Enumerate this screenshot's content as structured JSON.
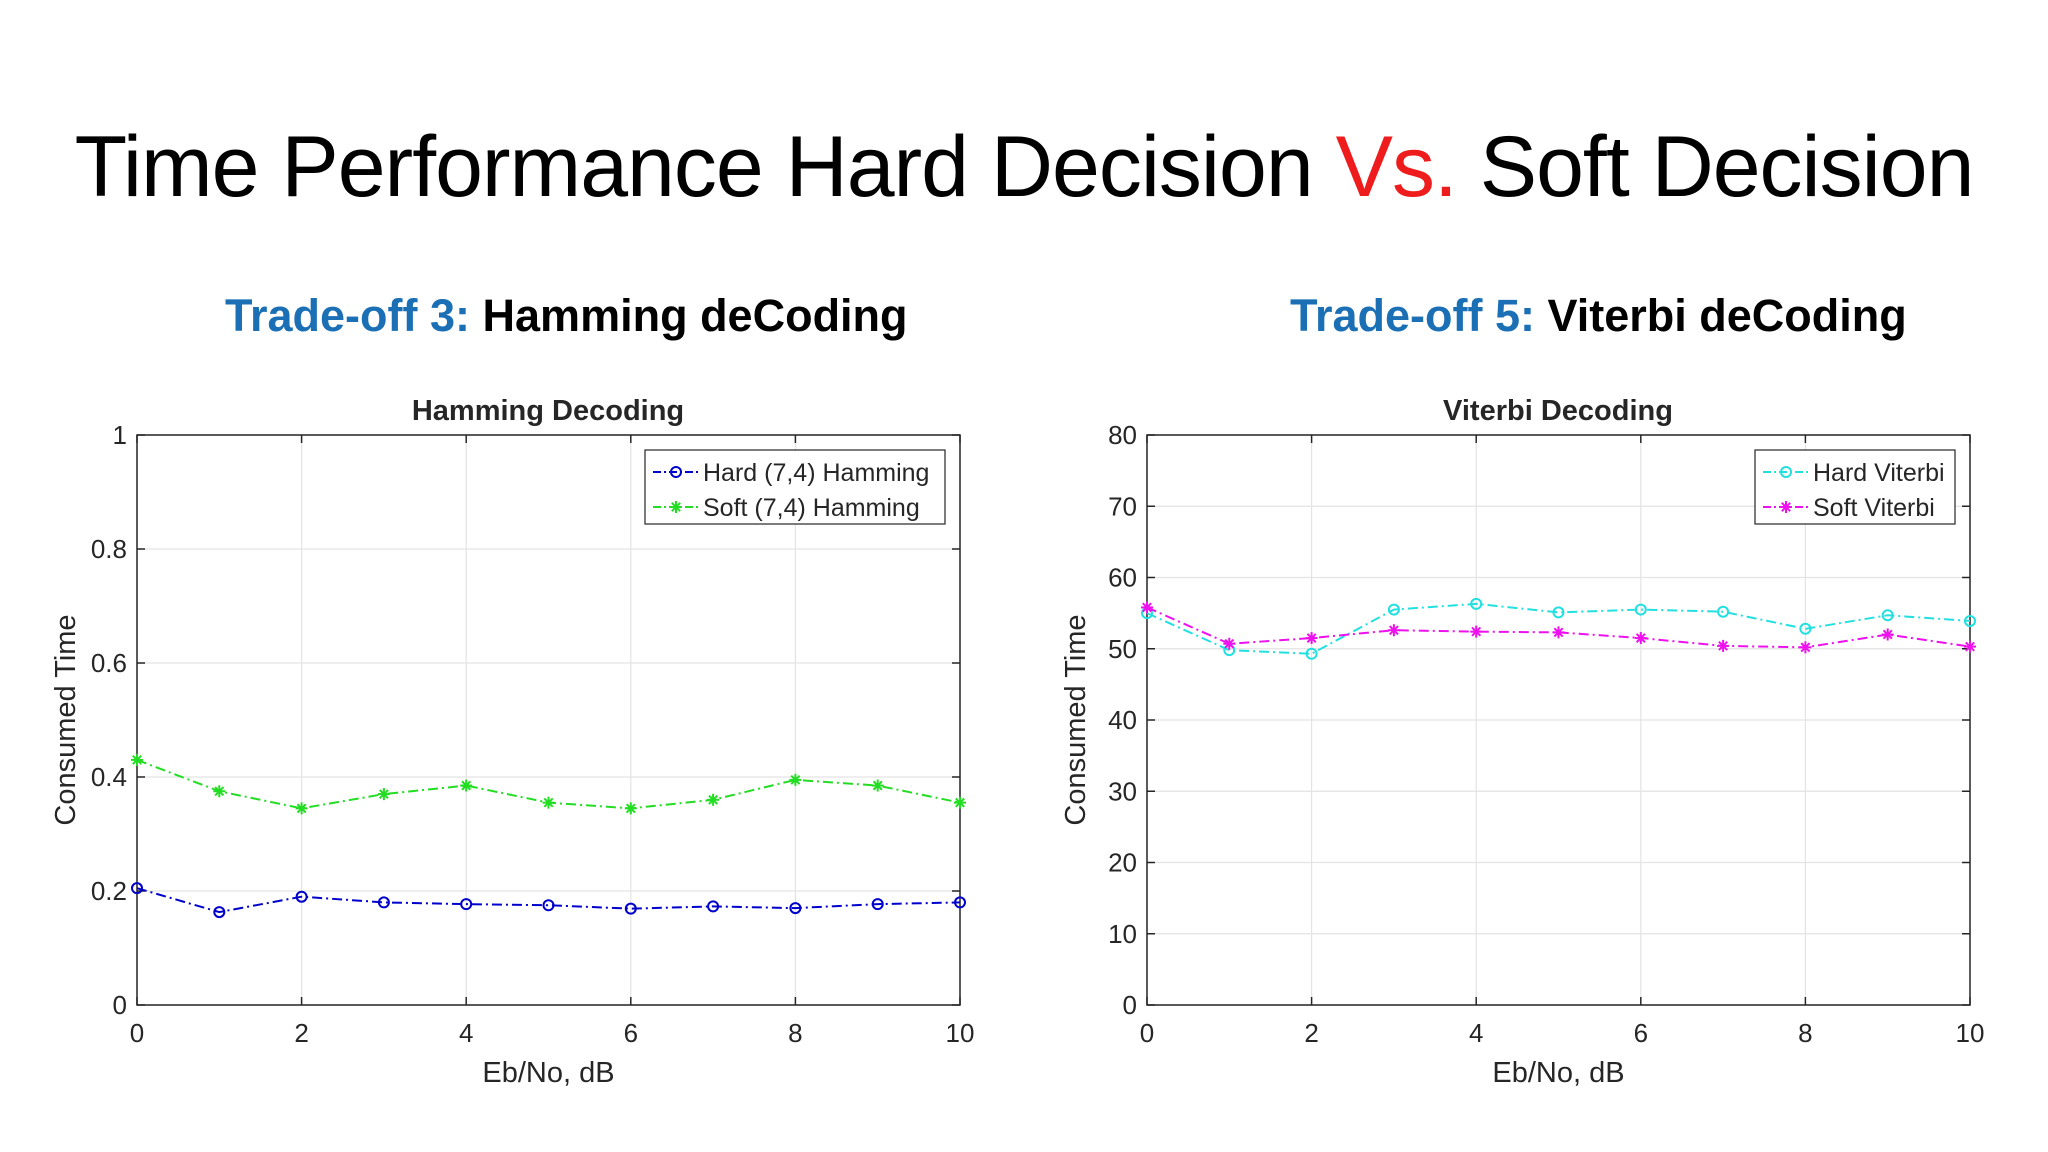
{
  "slide": {
    "title_part1": "Time Performance Hard Decision ",
    "title_vs": "Vs.",
    "title_part2": " Soft Decision",
    "title_vs_color": "#ee1c1c"
  },
  "subtitles": {
    "left": {
      "lead": "Trade-off 3:",
      "rest": " Hamming deCoding"
    },
    "right": {
      "lead": "Trade-off 5:",
      "rest": " Viterbi deCoding"
    },
    "lead_color": "#1a6fb5"
  },
  "chart_data": [
    {
      "type": "line",
      "title": "Hamming Decoding",
      "xlabel": "Eb/No, dB",
      "ylabel": "Consumed Time",
      "xlim": [
        0,
        10
      ],
      "ylim": [
        0,
        1
      ],
      "xticks": [
        0,
        2,
        4,
        6,
        8,
        10
      ],
      "yticks": [
        0,
        0.2,
        0.4,
        0.6,
        0.8,
        1
      ],
      "ytick_labels": [
        "0",
        "0.2",
        "0.4",
        "0.6",
        "0.8",
        "1"
      ],
      "grid": true,
      "legend_position": "top-right",
      "x": [
        0,
        1,
        2,
        3,
        4,
        5,
        6,
        7,
        8,
        9,
        10
      ],
      "series": [
        {
          "name": "Hard (7,4) Hamming",
          "color": "#0000cc",
          "marker": "circle",
          "line_style": "dash-dot",
          "values": [
            0.205,
            0.163,
            0.19,
            0.18,
            0.177,
            0.175,
            0.169,
            0.173,
            0.17,
            0.177,
            0.18
          ]
        },
        {
          "name": "Soft (7,4) Hamming",
          "color": "#22dd22",
          "marker": "asterisk",
          "line_style": "dash-dot",
          "values": [
            0.43,
            0.375,
            0.345,
            0.37,
            0.385,
            0.355,
            0.345,
            0.36,
            0.395,
            0.385,
            0.355
          ]
        }
      ]
    },
    {
      "type": "line",
      "title": "Viterbi Decoding",
      "xlabel": "Eb/No, dB",
      "ylabel": "Consumed Time",
      "xlim": [
        0,
        10
      ],
      "ylim": [
        0,
        80
      ],
      "xticks": [
        0,
        2,
        4,
        6,
        8,
        10
      ],
      "yticks": [
        0,
        10,
        20,
        30,
        40,
        50,
        60,
        70,
        80
      ],
      "ytick_labels": [
        "0",
        "10",
        "20",
        "30",
        "40",
        "50",
        "60",
        "70",
        "80"
      ],
      "grid": true,
      "legend_position": "top-right",
      "x": [
        0,
        1,
        2,
        3,
        4,
        5,
        6,
        7,
        8,
        9,
        10
      ],
      "series": [
        {
          "name": "Hard Viterbi",
          "color": "#22e0e0",
          "marker": "circle",
          "line_style": "dash-dot",
          "values": [
            55.0,
            49.8,
            49.3,
            55.5,
            56.3,
            55.1,
            55.5,
            55.2,
            52.8,
            54.7,
            53.9
          ]
        },
        {
          "name": "Soft Viterbi",
          "color": "#ee11ee",
          "marker": "asterisk",
          "line_style": "dash-dot",
          "values": [
            55.8,
            50.7,
            51.5,
            52.6,
            52.4,
            52.3,
            51.5,
            50.4,
            50.2,
            52.0,
            50.3
          ]
        }
      ]
    }
  ]
}
